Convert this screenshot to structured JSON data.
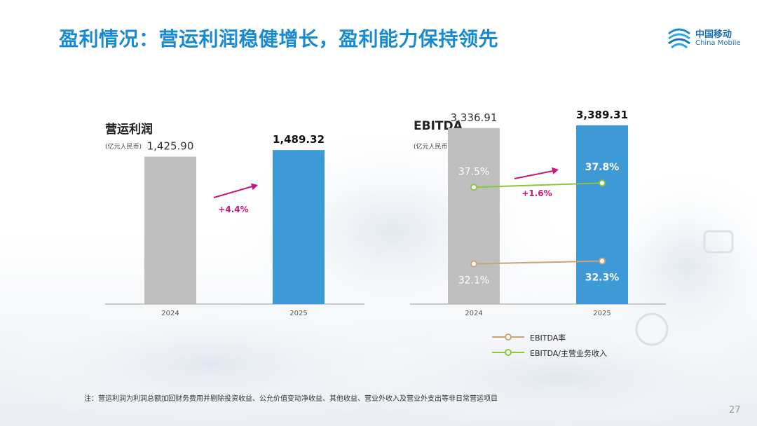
{
  "page": {
    "title": "盈利情况：营运利润稳健增长，盈利能力保持领先",
    "logo": {
      "cn": "中国移动",
      "en": "China Mobile"
    },
    "footnote": "注：营运利润为利润总额加回财务费用并剔除投资收益、公允价值变动净收益、其他收益、营业外收入及营业外支出等非日常营运项目",
    "page_number": "27"
  },
  "chart_data": [
    {
      "type": "bar",
      "title": "营运利润",
      "unit": "(亿元人民币)",
      "categories": [
        "2024",
        "2025"
      ],
      "values": [
        1425.9,
        1489.32
      ],
      "value_labels": [
        "1,425.90",
        "1,489.32"
      ],
      "growth_label": "+4.4%",
      "ylim": [
        0,
        2100
      ],
      "colors": [
        "#bfbfbf",
        "#3d9ad6"
      ],
      "growth_color": "#c8177b"
    },
    {
      "type": "bar",
      "title": "EBITDA",
      "unit": "(亿元人民币)",
      "categories": [
        "2024",
        "2025"
      ],
      "values": [
        3336.91,
        3389.31
      ],
      "value_labels": [
        "3,336.91",
        "3,389.31"
      ],
      "growth_label": "+1.6%",
      "ylim": [
        0,
        4250
      ],
      "colors": [
        "#bfbfbf",
        "#3d9ad6"
      ],
      "growth_color": "#c8177b",
      "series": [
        {
          "name": "EBITDA率",
          "values": [
            32.1,
            32.3
          ],
          "labels": [
            "32.1%",
            "32.3%"
          ],
          "color": "#c9a47a"
        },
        {
          "name": "EBITDA/主营业务收入",
          "values": [
            37.5,
            37.8
          ],
          "labels": [
            "37.5%",
            "37.8%"
          ],
          "color": "#8cc63f"
        }
      ]
    }
  ]
}
